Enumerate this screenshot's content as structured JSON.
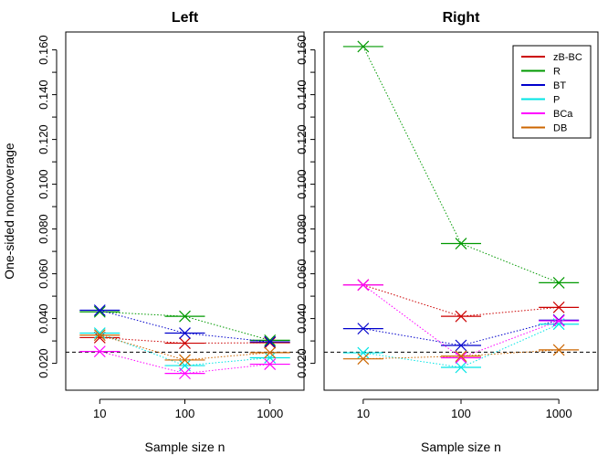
{
  "chart_data": [
    {
      "type": "line",
      "title": "Left",
      "xlabel": "Sample size n",
      "ylabel": "One-sided noncoverage",
      "x": [
        "10",
        "100",
        "1000"
      ],
      "x_scale": "log",
      "ylim": [
        0.008,
        0.168
      ],
      "yticks": [
        "0.020",
        "0.040",
        "0.060",
        "0.080",
        "0.100",
        "0.120",
        "0.140",
        "0.160"
      ],
      "reference_line": 0.025,
      "grid": false,
      "series": [
        {
          "name": "zB-BC",
          "color": "#cc0000",
          "values": [
            0.0315,
            0.029,
            0.0292
          ]
        },
        {
          "name": "R",
          "color": "#009900",
          "values": [
            0.043,
            0.041,
            0.0303
          ]
        },
        {
          "name": "BT",
          "color": "#0000cc",
          "values": [
            0.0437,
            0.0335,
            0.0296
          ]
        },
        {
          "name": "P",
          "color": "#00e5e5",
          "values": [
            0.0335,
            0.019,
            0.0225
          ]
        },
        {
          "name": "BCa",
          "color": "#ff00ff",
          "values": [
            0.0253,
            0.0155,
            0.0196
          ]
        },
        {
          "name": "DB",
          "color": "#cc6600",
          "values": [
            0.0326,
            0.0215,
            0.0248
          ]
        }
      ]
    },
    {
      "type": "line",
      "title": "Right",
      "xlabel": "Sample size n",
      "ylabel": "",
      "x": [
        "10",
        "100",
        "1000"
      ],
      "x_scale": "log",
      "ylim": [
        0.008,
        0.168
      ],
      "yticks": [
        "0.020",
        "0.040",
        "0.060",
        "0.080",
        "0.100",
        "0.120",
        "0.140",
        "0.160"
      ],
      "reference_line": 0.025,
      "grid": false,
      "legend": "top-right",
      "series": [
        {
          "name": "zB-BC",
          "color": "#cc0000",
          "values": [
            0.055,
            0.041,
            0.045
          ]
        },
        {
          "name": "R",
          "color": "#009900",
          "values": [
            0.1615,
            0.0735,
            0.056
          ]
        },
        {
          "name": "BT",
          "color": "#0000cc",
          "values": [
            0.0355,
            0.028,
            0.0393
          ]
        },
        {
          "name": "P",
          "color": "#00e5e5",
          "values": [
            0.0247,
            0.0182,
            0.0375
          ]
        },
        {
          "name": "BCa",
          "color": "#ff00ff",
          "values": [
            0.055,
            0.0225,
            0.039
          ]
        },
        {
          "name": "DB",
          "color": "#cc6600",
          "values": [
            0.022,
            0.0232,
            0.026
          ]
        }
      ]
    }
  ]
}
